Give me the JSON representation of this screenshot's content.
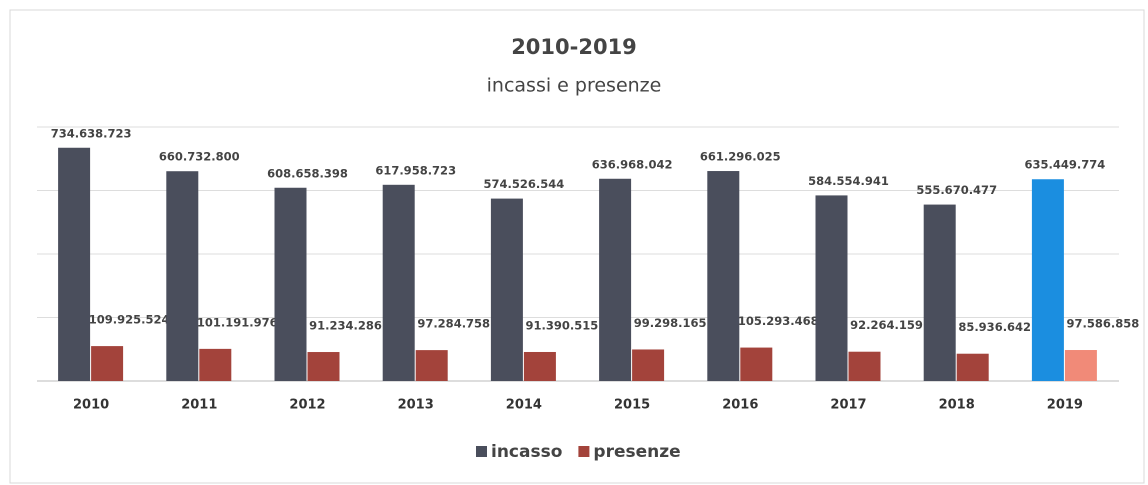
{
  "chart_data": {
    "type": "bar",
    "title": "2010-2019",
    "subtitle": "incassi e presenze",
    "categories": [
      "2010",
      "2011",
      "2012",
      "2013",
      "2014",
      "2015",
      "2016",
      "2017",
      "2018",
      "2019"
    ],
    "series": [
      {
        "name": "incasso",
        "color": "#4a4e5c",
        "colors": [
          "#4a4e5c",
          "#4a4e5c",
          "#4a4e5c",
          "#4a4e5c",
          "#4a4e5c",
          "#4a4e5c",
          "#4a4e5c",
          "#4a4e5c",
          "#4a4e5c",
          "#1b8ee0"
        ],
        "values": [
          734638723,
          660732800,
          608658398,
          617958723,
          574526544,
          636968042,
          661296025,
          584554941,
          555670477,
          635449774
        ],
        "value_labels": [
          "734.638.723",
          "660.732.800",
          "608.658.398",
          "617.958.723",
          "574.526.544",
          "636.968.042",
          "661.296.025",
          "584.554.941",
          "555.670.477",
          "635.449.774"
        ]
      },
      {
        "name": "presenze",
        "color": "#a3433b",
        "colors": [
          "#a3433b",
          "#a3433b",
          "#a3433b",
          "#a3433b",
          "#a3433b",
          "#a3433b",
          "#a3433b",
          "#a3433b",
          "#a3433b",
          "#f18a78"
        ],
        "values": [
          109925524,
          101191976,
          91234286,
          97284758,
          91390515,
          99298165,
          105293468,
          92264159,
          85936642,
          97586858
        ],
        "value_labels": [
          "109.925.524",
          "101.191.976",
          "91.234.286",
          "97.284.758",
          "91.390.515",
          "99.298.165",
          "105.293.468",
          "92.264.159",
          "85.936.642",
          "97.586.858"
        ]
      }
    ],
    "ylim": [
      0,
      800000000
    ],
    "yticks": [
      0,
      200000000,
      400000000,
      600000000,
      800000000
    ],
    "grid": true,
    "legend": "bottom"
  }
}
